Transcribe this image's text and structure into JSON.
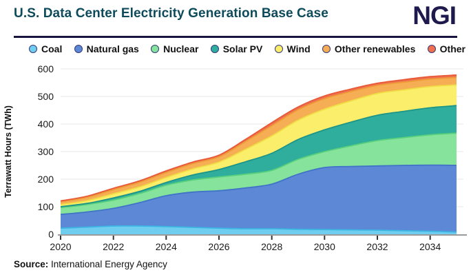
{
  "header": {
    "title": "U.S. Data Center Electricity Generation Base Case",
    "logo": "NGI"
  },
  "source": {
    "label": "Source:",
    "text": " International Energy Agency"
  },
  "chart_data": {
    "type": "area",
    "stacked": true,
    "title": "U.S. Data Center Electricity Generation Base Case",
    "xlabel": "",
    "ylabel": "Terrawatt Hours (TWh)",
    "ylim": [
      0,
      600
    ],
    "yticks": [
      0,
      100,
      200,
      300,
      400,
      500,
      600
    ],
    "xticks": [
      2020,
      2022,
      2024,
      2026,
      2028,
      2030,
      2032,
      2034
    ],
    "grid": true,
    "legend_position": "top",
    "x": [
      2020,
      2021,
      2022,
      2023,
      2024,
      2025,
      2026,
      2027,
      2028,
      2029,
      2030,
      2031,
      2032,
      2033,
      2034,
      2035
    ],
    "series": [
      {
        "name": "Coal",
        "color": "#6fcef0",
        "line": "#3db5e2",
        "values": [
          22,
          26,
          30,
          30,
          28,
          25,
          22,
          20,
          20,
          18,
          17,
          16,
          15,
          13,
          11,
          8
        ]
      },
      {
        "name": "Natural gas",
        "color": "#5c88d6",
        "line": "#4273c7",
        "values": [
          50,
          55,
          64,
          85,
          112,
          128,
          136,
          148,
          162,
          200,
          225,
          230,
          233,
          237,
          240,
          242
        ]
      },
      {
        "name": "Nuclear",
        "color": "#85e39c",
        "line": "#57cf7c",
        "values": [
          25,
          27,
          30,
          33,
          38,
          44,
          50,
          50,
          50,
          54,
          58,
          75,
          92,
          101,
          110,
          117
        ]
      },
      {
        "name": "Solar PV",
        "color": "#2fae9d",
        "line": "#1d9488",
        "values": [
          3,
          4,
          8,
          8,
          10,
          18,
          27,
          45,
          62,
          72,
          79,
          86,
          92,
          95,
          98,
          100
        ]
      },
      {
        "name": "Wind",
        "color": "#fbee6b",
        "line": "#f0dd45",
        "values": [
          8,
          10,
          15,
          16,
          18,
          22,
          27,
          45,
          63,
          70,
          75,
          77,
          79,
          78,
          77,
          75
        ]
      },
      {
        "name": "Other renewables",
        "color": "#f6ae55",
        "line": "#ee9c38",
        "values": [
          10,
          12,
          15,
          17,
          18,
          19,
          19,
          28,
          37,
          38,
          38,
          34,
          29,
          28,
          27,
          27
        ]
      },
      {
        "name": "Other",
        "color": "#ef6f4e",
        "line": "#e85a37",
        "values": [
          3,
          4,
          5,
          5,
          6,
          6,
          6,
          8,
          11,
          10,
          10,
          9,
          8,
          9,
          9,
          9
        ]
      }
    ]
  }
}
